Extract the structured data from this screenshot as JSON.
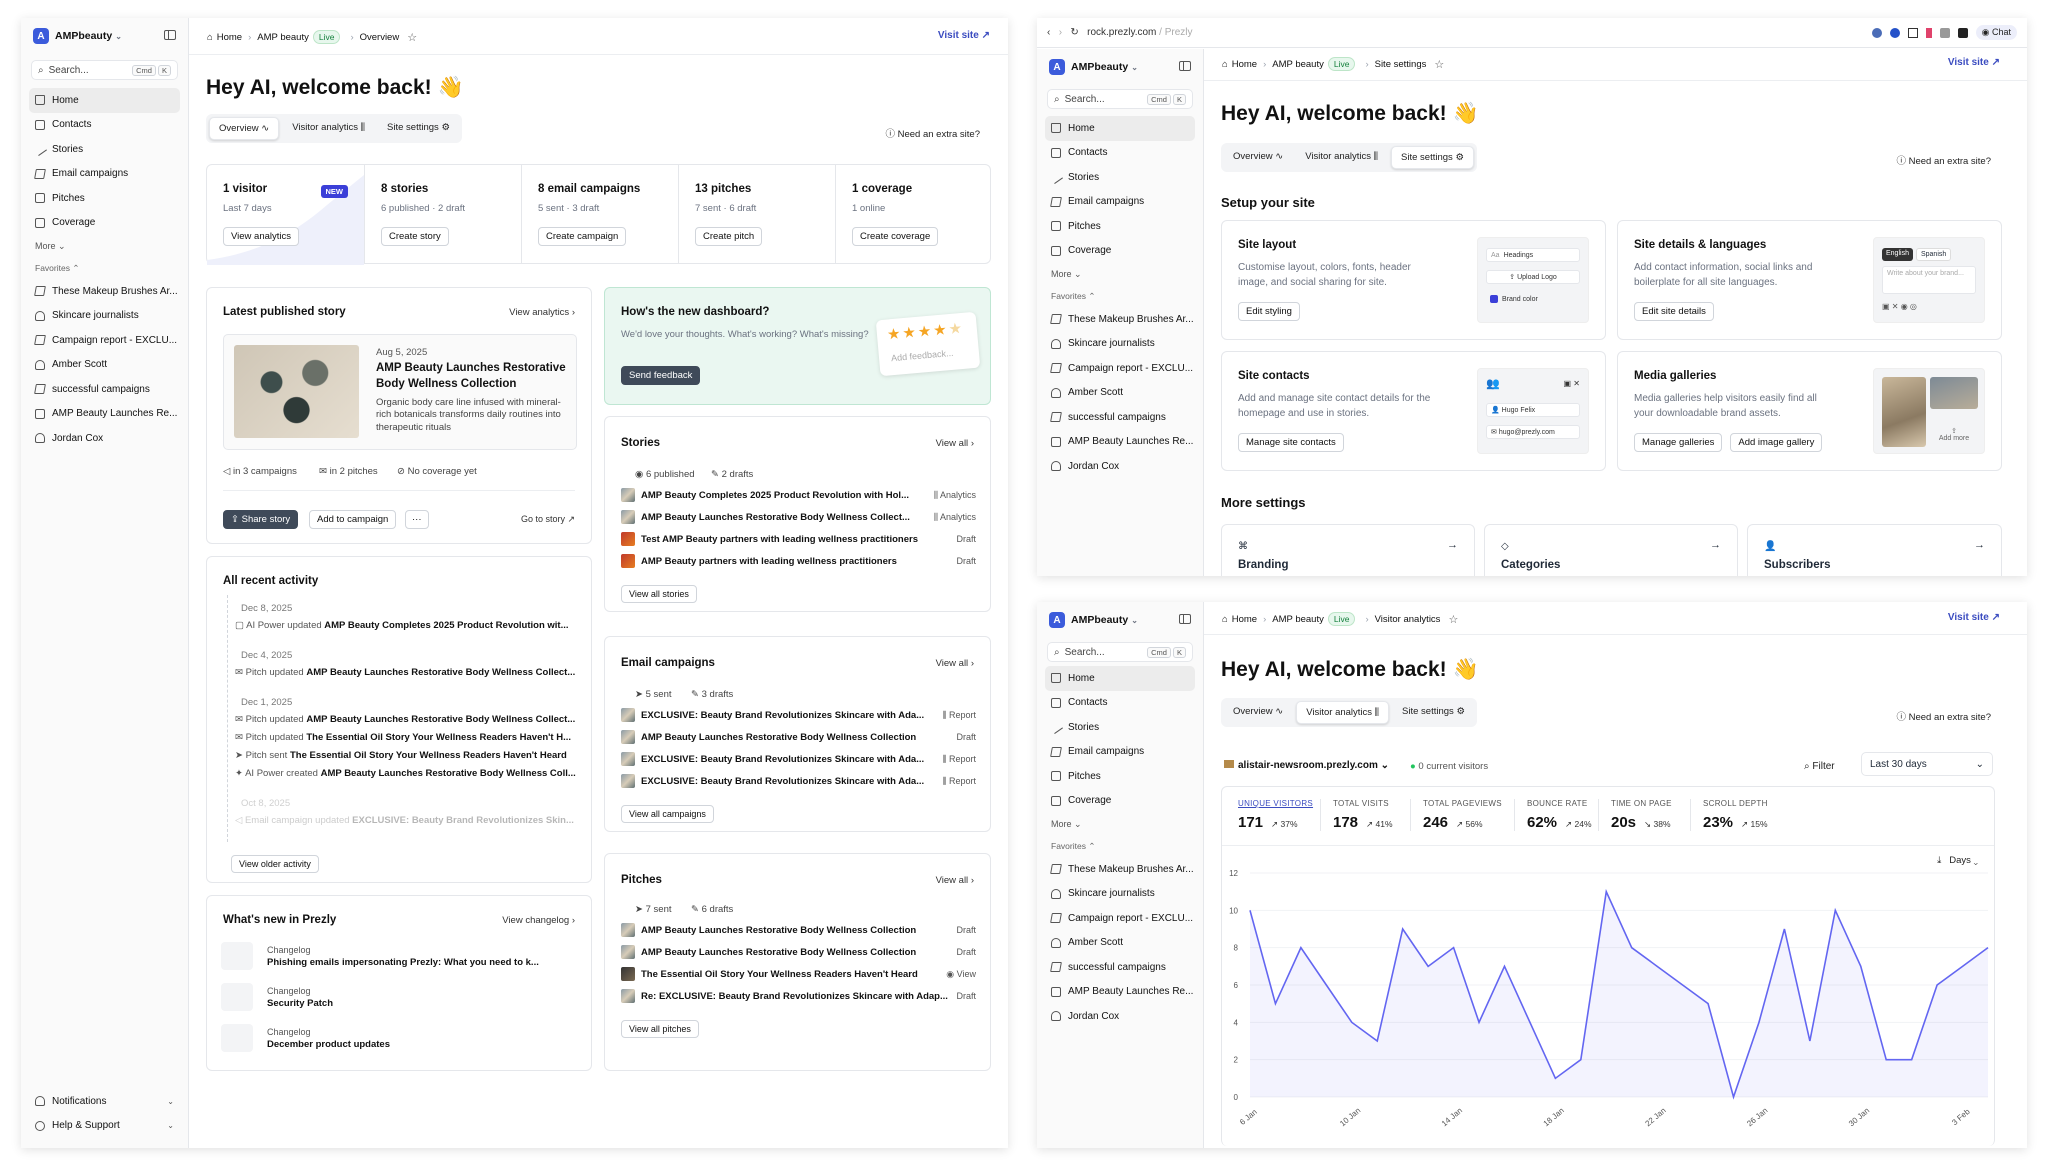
{
  "org": {
    "name": "AMPbeauty",
    "initial": "A"
  },
  "search": {
    "placeholder": "Search...",
    "k1": "Cmd",
    "k2": "K"
  },
  "nav": [
    "Home",
    "Contacts",
    "Stories",
    "Email campaigns",
    "Pitches",
    "Coverage"
  ],
  "more": "More",
  "favorites_label": "Favorites",
  "favorites": [
    "These Makeup Brushes Ar...",
    "Skincare journalists",
    "Campaign report - EXCLU...",
    "Amber Scott",
    "successful campaigns",
    "AMP Beauty Launches Re...",
    "Jordan Cox"
  ],
  "favorites_short": [
    "These Makeup Brushes Ar...",
    "Skincare journalists",
    "Campaign report - EXCLU...",
    "Amber Scott",
    "successful campaigns",
    "AMP Beauty Launches Re...",
    "Jordan Cox"
  ],
  "bottom_nav": [
    "Notifications",
    "Help & Support"
  ],
  "breadcrumb": {
    "home": "Home",
    "site": "AMP beauty",
    "live": "Live",
    "page1": "Overview",
    "page2": "Site settings",
    "page3": "Visitor analytics"
  },
  "visit_site": "Visit site",
  "welcome": "Hey AI, welcome back! 👋",
  "tabs": [
    "Overview",
    "Visitor analytics",
    "Site settings"
  ],
  "extra_site": "Need an extra site?",
  "stats": [
    {
      "title": "1 visitor",
      "sub": "Last 7 days",
      "btn": "View analytics",
      "badge": "NEW"
    },
    {
      "title": "8 stories",
      "sub": "6 published · 2 draft",
      "btn": "Create story"
    },
    {
      "title": "8 email campaigns",
      "sub": "5 sent · 3 draft",
      "btn": "Create campaign"
    },
    {
      "title": "13 pitches",
      "sub": "7 sent · 6 draft",
      "btn": "Create pitch"
    },
    {
      "title": "1 coverage",
      "sub": "1 online",
      "btn": "Create coverage"
    }
  ],
  "latest": {
    "title": "Latest published story",
    "link": "View analytics",
    "date": "Aug 5, 2025",
    "headline": "AMP Beauty Launches Restorative Body Wellness Collection",
    "desc": "Organic body care line infused with mineral-rich botanicals transforms daily routines into therapeutic rituals",
    "m1": "in 3 campaigns",
    "m2": "in 2 pitches",
    "m3": "No coverage yet",
    "b1": "Share story",
    "b2": "Add to campaign",
    "b3": "···",
    "b4": "Go to story"
  },
  "feedback": {
    "title": "How's the new dashboard?",
    "desc": "We'd love your thoughts. What's working? What's missing?",
    "btn": "Send feedback",
    "note": "Add feedback..."
  },
  "activity": {
    "title": "All recent activity",
    "groups": [
      {
        "date": "Dec 8, 2025",
        "items": [
          [
            "AI Power updated",
            "AMP Beauty Completes 2025 Product Revolution wit..."
          ]
        ]
      },
      {
        "date": "Dec 4, 2025",
        "items": [
          [
            "Pitch updated",
            "AMP Beauty Launches Restorative Body Wellness Collect..."
          ]
        ]
      },
      {
        "date": "Dec 1, 2025",
        "items": [
          [
            "Pitch updated",
            "AMP Beauty Launches Restorative Body Wellness Collect..."
          ],
          [
            "Pitch updated",
            "The Essential Oil Story Your Wellness Readers Haven't H..."
          ],
          [
            "Pitch sent",
            "The Essential Oil Story Your Wellness Readers Haven't Heard"
          ],
          [
            "AI Power created",
            "AMP Beauty Launches Restorative Body Wellness Coll..."
          ]
        ]
      },
      {
        "date": "Oct 8, 2025",
        "items": [
          [
            "Email campaign updated",
            "EXCLUSIVE: Beauty Brand Revolutionizes Skin..."
          ]
        ]
      }
    ],
    "btn": "View older activity"
  },
  "whatsnew": {
    "title": "What's new in Prezly",
    "link": "View changelog",
    "items": [
      {
        "k": "Changelog",
        "v": "Phishing emails impersonating Prezly: What you need to k..."
      },
      {
        "k": "Changelog",
        "v": "Security Patch"
      },
      {
        "k": "Changelog",
        "v": "December product updates"
      }
    ]
  },
  "stories": {
    "title": "Stories",
    "link": "View all",
    "m1": "6 published",
    "m2": "2 drafts",
    "rows": [
      [
        "AMP Beauty Completes 2025 Product Revolution with Hol...",
        "Analytics"
      ],
      [
        "AMP Beauty Launches Restorative Body Wellness Collect...",
        "Analytics"
      ],
      [
        "Test AMP Beauty partners with leading wellness practitioners",
        "Draft"
      ],
      [
        "AMP Beauty partners with leading wellness practitioners",
        "Draft"
      ]
    ],
    "btn": "View all stories"
  },
  "campaigns": {
    "title": "Email campaigns",
    "link": "View all",
    "m1": "5 sent",
    "m2": "3 drafts",
    "rows": [
      [
        "EXCLUSIVE: Beauty Brand Revolutionizes Skincare with Ada...",
        "Report"
      ],
      [
        "AMP Beauty Launches Restorative Body Wellness Collection",
        "Draft"
      ],
      [
        "EXCLUSIVE: Beauty Brand Revolutionizes Skincare with Ada...",
        "Report"
      ],
      [
        "EXCLUSIVE: Beauty Brand Revolutionizes Skincare with Ada...",
        "Report"
      ]
    ],
    "btn": "View all campaigns"
  },
  "pitches": {
    "title": "Pitches",
    "link": "View all",
    "m1": "7 sent",
    "m2": "6 drafts",
    "rows": [
      [
        "AMP Beauty Launches Restorative Body Wellness Collection",
        "Draft"
      ],
      [
        "AMP Beauty Launches Restorative Body Wellness Collection",
        "Draft"
      ],
      [
        "The Essential Oil Story Your Wellness Readers Haven't Heard",
        "View"
      ],
      [
        "Re: EXCLUSIVE: Beauty Brand Revolutionizes Skincare with Adap...",
        "Draft"
      ]
    ],
    "btn": "View all pitches"
  },
  "browser": {
    "url": "rock.prezly.com",
    "suffix": "/ Prezly",
    "chat": "Chat"
  },
  "setup": {
    "title": "Setup your site",
    "cards": [
      {
        "title": "Site layout",
        "desc": "Customise layout, colors, fonts, header image, and social sharing for site.",
        "btns": [
          "Edit styling"
        ],
        "mini": [
          "Headings",
          "Upload Logo",
          "Brand color"
        ]
      },
      {
        "title": "Site details & languages",
        "desc": "Add contact information, social links and boilerplate for all site languages.",
        "btns": [
          "Edit site details"
        ],
        "mini": [
          "English",
          "Spanish",
          "Write about your brand..."
        ]
      },
      {
        "title": "Site contacts",
        "desc": "Add and manage site contact details for the homepage and use in stories.",
        "btns": [
          "Manage site contacts"
        ],
        "mini": [
          "Hugo Felix",
          "hugo@prezly.com"
        ]
      },
      {
        "title": "Media galleries",
        "desc": "Media galleries help visitors easily find all your downloadable brand assets.",
        "btns": [
          "Manage galleries",
          "Add image gallery"
        ],
        "mini": [
          "Add more"
        ]
      }
    ],
    "more_title": "More settings",
    "more": [
      "Branding",
      "Categories",
      "Subscribers"
    ]
  },
  "analytics": {
    "site": "alistair-newsroom.prezly.com",
    "current": "0 current visitors",
    "filter": "Filter",
    "range": "Last 30 days",
    "interval": "Days",
    "metrics": [
      {
        "label": "UNIQUE VISITORS",
        "value": "171",
        "delta": "↗ 37%"
      },
      {
        "label": "TOTAL VISITS",
        "value": "178",
        "delta": "↗ 41%"
      },
      {
        "label": "TOTAL PAGEVIEWS",
        "value": "246",
        "delta": "↗ 56%"
      },
      {
        "label": "BOUNCE RATE",
        "value": "62%",
        "delta": "↗ 24%"
      },
      {
        "label": "TIME ON PAGE",
        "value": "20s",
        "delta": "↘ 38%"
      },
      {
        "label": "SCROLL DEPTH",
        "value": "23%",
        "delta": "↗ 15%"
      }
    ]
  },
  "chart_data": {
    "type": "area",
    "x": [
      "6 Jan",
      "7 Jan",
      "8 Jan",
      "9 Jan",
      "10 Jan",
      "11 Jan",
      "12 Jan",
      "13 Jan",
      "14 Jan",
      "15 Jan",
      "16 Jan",
      "17 Jan",
      "18 Jan",
      "19 Jan",
      "20 Jan",
      "21 Jan",
      "22 Jan",
      "23 Jan",
      "24 Jan",
      "25 Jan",
      "26 Jan",
      "27 Jan",
      "28 Jan",
      "29 Jan",
      "30 Jan",
      "31 Jan",
      "1 Feb",
      "2 Feb",
      "3 Feb",
      "4 Feb"
    ],
    "values": [
      10,
      5,
      8,
      6,
      4,
      3,
      9,
      7,
      8,
      4,
      7,
      4,
      1,
      2,
      11,
      8,
      7,
      6,
      5,
      0,
      4,
      9,
      3,
      10,
      7,
      2,
      2,
      6,
      7,
      8
    ],
    "xticks": [
      "6 Jan",
      "10 Jan",
      "14 Jan",
      "18 Jan",
      "22 Jan",
      "26 Jan",
      "30 Jan",
      "3 Feb"
    ],
    "yticks": [
      0,
      2,
      4,
      6,
      8,
      10,
      12
    ],
    "ylim": [
      0,
      12
    ],
    "color": "#6366f1"
  }
}
